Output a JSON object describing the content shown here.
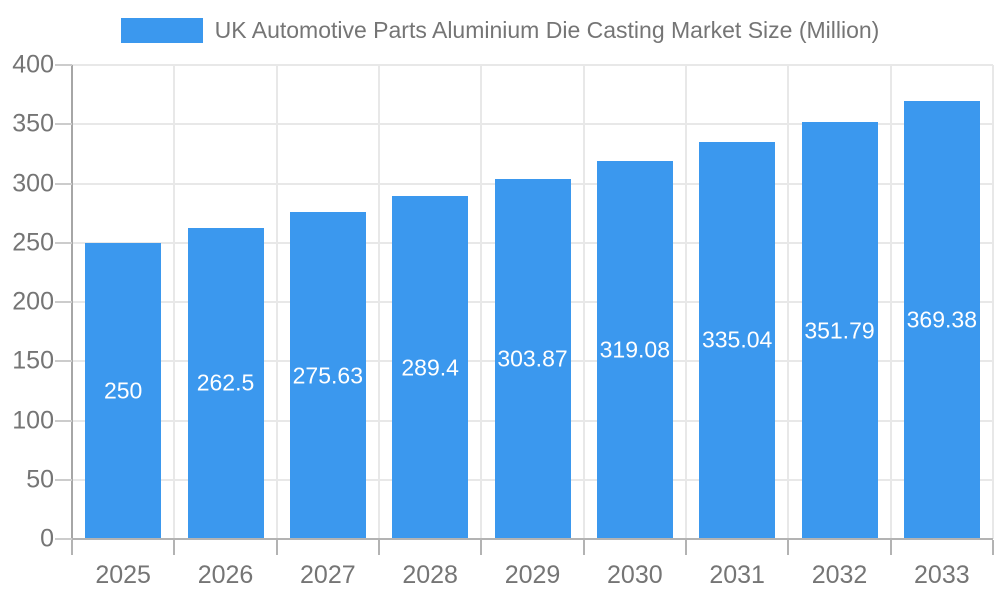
{
  "chart_data": {
    "type": "bar",
    "title": "UK Automotive Parts Aluminium Die Casting Market Size (Million)",
    "categories": [
      "2025",
      "2026",
      "2027",
      "2028",
      "2029",
      "2030",
      "2031",
      "2032",
      "2033"
    ],
    "values": [
      250,
      262.5,
      275.63,
      289.4,
      303.87,
      319.08,
      335.04,
      351.79,
      369.38
    ],
    "value_labels": [
      "250",
      "262.5",
      "275.63",
      "289.4",
      "303.87",
      "319.08",
      "335.04",
      "351.79",
      "369.38"
    ],
    "xlabel": "",
    "ylabel": "",
    "ylim": [
      0,
      400
    ],
    "yticks": [
      0,
      50,
      100,
      150,
      200,
      250,
      300,
      350,
      400
    ],
    "grid": true,
    "legend_position": "top",
    "colors": {
      "bar": "#3B98EE",
      "grid": "#e8e8e8",
      "axis": "#a6a6a6",
      "baseline": "#b3b3b3",
      "tick_label": "#757575",
      "title": "#757575",
      "value_label": "#ffffff",
      "background": "#ffffff"
    }
  }
}
